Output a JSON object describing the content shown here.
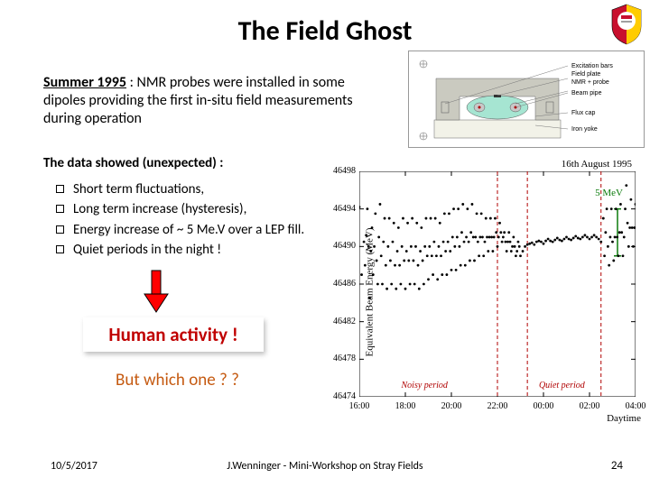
{
  "title": "The Field Ghost",
  "intro_lead": "Summer 1995",
  "intro_rest": " : NMR probes were installed in some dipoles providing the first in-situ field measurements during operation",
  "subhead": "The data showed (unexpected) :",
  "bullets": [
    "Short term fluctuations,",
    "Long term increase (hysteresis),",
    "Energy increase of ~ 5 Me.V over a LEP fill.",
    "Quiet periods in the night !"
  ],
  "human_activity": "Human activity !",
  "human_activity_color": "#c00000",
  "which_one": "But which one ? ?",
  "which_one_color": "#c55a11",
  "footer_date": "10/5/2017",
  "footer_center": "J.Wenninger - Mini-Workshop on Stray Fields",
  "footer_page": "24",
  "arrow_colors": {
    "fill": "#ff0000",
    "stroke": "#000000"
  },
  "logo_colors": {
    "outer": "#c8102e",
    "inner": "#ffcc00"
  },
  "diagram": {
    "labels": [
      "Excitation bars",
      "Field plate",
      "NMR + probe",
      "Flux cap",
      "Iron yoke"
    ],
    "labels_fontsize": 7,
    "border_color": "#999999",
    "pipe_color": "#a6e5d2",
    "yoke_color": "#cacac0",
    "base_color": "#f2f2e8",
    "bh_color": "#c8c8c8"
  },
  "chart": {
    "type": "scatter-line",
    "ylabel": "Equivalent Beam Energy (MeV)",
    "xlabel": "Daytime",
    "chart_title": "16th August 1995",
    "mev_annotation": "5 MeV",
    "mev_color": "#0a7a0a",
    "dash_color": "#b00000",
    "noisy_label": "Noisy period",
    "quiet_label": "Quiet period",
    "region_color": "#b00000",
    "ylim": [
      46474,
      46498
    ],
    "ytick_step": 2,
    "yticks": [
      46474,
      46478,
      46482,
      46486,
      46490,
      46494,
      46498
    ],
    "xticks": [
      "16:00",
      "18:00",
      "20:00",
      "22:00",
      "00:00",
      "02:00",
      "04:00"
    ],
    "xrange_hours": [
      16,
      28
    ],
    "noisy_period": [
      16,
      22
    ],
    "quiet_period": [
      23.3,
      26.5
    ],
    "background_color": "#ffffff",
    "axis_color": "#000000",
    "point_color": "#000000",
    "point_size": 2,
    "series": [
      [
        16.0,
        46494.2
      ],
      [
        16.1,
        46487.0
      ],
      [
        16.2,
        46490.5
      ],
      [
        16.25,
        46488.0
      ],
      [
        16.3,
        46491.2
      ],
      [
        16.35,
        46494.0
      ],
      [
        16.4,
        46490.0
      ],
      [
        16.45,
        46484.5
      ],
      [
        16.5,
        46489.5
      ],
      [
        16.55,
        46492.0
      ],
      [
        16.6,
        46487.0
      ],
      [
        16.65,
        46490.0
      ],
      [
        16.7,
        46493.5
      ],
      [
        16.75,
        46488.5
      ],
      [
        16.8,
        46486.0
      ],
      [
        16.85,
        46491.0
      ],
      [
        16.9,
        46494.5
      ],
      [
        16.95,
        46489.0
      ],
      [
        17.0,
        46486.0
      ],
      [
        17.05,
        46490.5
      ],
      [
        17.1,
        46493.0
      ],
      [
        17.15,
        46488.0
      ],
      [
        17.2,
        46485.5
      ],
      [
        17.25,
        46490.0
      ],
      [
        17.3,
        46493.0
      ],
      [
        17.35,
        46488.5
      ],
      [
        17.4,
        46486.0
      ],
      [
        17.45,
        46490.5
      ],
      [
        17.5,
        46492.5
      ],
      [
        17.55,
        46488.0
      ],
      [
        17.6,
        46485.5
      ],
      [
        17.65,
        46489.5
      ],
      [
        17.7,
        46492.0
      ],
      [
        17.75,
        46488.0
      ],
      [
        17.8,
        46486.0
      ],
      [
        17.85,
        46490.0
      ],
      [
        17.9,
        46493.0
      ],
      [
        17.95,
        46488.5
      ],
      [
        18.0,
        46485.5
      ],
      [
        18.05,
        46489.5
      ],
      [
        18.1,
        46492.5
      ],
      [
        18.15,
        46488.5
      ],
      [
        18.2,
        46486.0
      ],
      [
        18.25,
        46490.0
      ],
      [
        18.3,
        46493.0
      ],
      [
        18.35,
        46488.5
      ],
      [
        18.4,
        46486.0
      ],
      [
        18.45,
        46490.0
      ],
      [
        18.5,
        46492.5
      ],
      [
        18.55,
        46488.0
      ],
      [
        18.6,
        46485.5
      ],
      [
        18.65,
        46489.5
      ],
      [
        18.7,
        46492.0
      ],
      [
        18.75,
        46488.5
      ],
      [
        18.8,
        46486.0
      ],
      [
        18.85,
        46490.0
      ],
      [
        18.9,
        46493.0
      ],
      [
        18.95,
        46489.0
      ],
      [
        19.0,
        46486.5
      ],
      [
        19.05,
        46490.0
      ],
      [
        19.1,
        46493.0
      ],
      [
        19.15,
        46489.0
      ],
      [
        19.2,
        46487.0
      ],
      [
        19.25,
        46490.5
      ],
      [
        19.3,
        46493.0
      ],
      [
        19.35,
        46489.0
      ],
      [
        19.4,
        46486.5
      ],
      [
        19.45,
        46490.0
      ],
      [
        19.5,
        46492.5
      ],
      [
        19.55,
        46489.0
      ],
      [
        19.6,
        46487.0
      ],
      [
        19.65,
        46490.5
      ],
      [
        19.7,
        46493.5
      ],
      [
        19.75,
        46489.5
      ],
      [
        19.8,
        46487.0
      ],
      [
        19.85,
        46490.5
      ],
      [
        19.9,
        46493.5
      ],
      [
        19.95,
        46489.5
      ],
      [
        20.0,
        46487.5
      ],
      [
        20.05,
        46491.0
      ],
      [
        20.1,
        46494.0
      ],
      [
        20.15,
        46490.0
      ],
      [
        20.2,
        46487.5
      ],
      [
        20.25,
        46491.0
      ],
      [
        20.3,
        46494.0
      ],
      [
        20.35,
        46490.0
      ],
      [
        20.4,
        46488.0
      ],
      [
        20.45,
        46491.5
      ],
      [
        20.5,
        46494.5
      ],
      [
        20.55,
        46490.5
      ],
      [
        20.6,
        46488.0
      ],
      [
        20.65,
        46491.0
      ],
      [
        20.7,
        46494.0
      ],
      [
        20.75,
        46490.5
      ],
      [
        20.8,
        46488.5
      ],
      [
        20.85,
        46491.5
      ],
      [
        20.9,
        46494.5
      ],
      [
        20.95,
        46491.0
      ],
      [
        21.0,
        46488.5
      ],
      [
        21.05,
        46491.0
      ],
      [
        21.1,
        46493.5
      ],
      [
        21.15,
        46490.5
      ],
      [
        21.2,
        46489.0
      ],
      [
        21.25,
        46491.0
      ],
      [
        21.3,
        46493.5
      ],
      [
        21.35,
        46491.0
      ],
      [
        21.4,
        46489.0
      ],
      [
        21.45,
        46490.5
      ],
      [
        21.5,
        46493.0
      ],
      [
        21.55,
        46491.0
      ],
      [
        21.6,
        46489.5
      ],
      [
        21.65,
        46491.0
      ],
      [
        21.7,
        46493.0
      ],
      [
        21.75,
        46491.0
      ],
      [
        21.8,
        46489.5
      ],
      [
        21.85,
        46491.0
      ],
      [
        21.9,
        46493.0
      ],
      [
        21.95,
        46491.5
      ],
      [
        22.0,
        46490.0
      ],
      [
        22.05,
        46491.0
      ],
      [
        22.1,
        46492.5
      ],
      [
        22.15,
        46491.5
      ],
      [
        22.2,
        46490.5
      ],
      [
        22.25,
        46491.0
      ],
      [
        22.3,
        46491.5
      ],
      [
        22.35,
        46490.5
      ],
      [
        22.4,
        46489.5
      ],
      [
        22.45,
        46490.5
      ],
      [
        22.5,
        46491.5
      ],
      [
        22.55,
        46490.5
      ],
      [
        22.6,
        46489.5
      ],
      [
        22.65,
        46490.0
      ],
      [
        22.7,
        46491.0
      ],
      [
        22.75,
        46490.0
      ],
      [
        22.8,
        46489.0
      ],
      [
        22.85,
        46489.5
      ],
      [
        22.9,
        46490.5
      ],
      [
        22.95,
        46490.0
      ],
      [
        23.0,
        46489.0
      ],
      [
        23.1,
        46489.5
      ],
      [
        23.2,
        46490.0
      ],
      [
        23.3,
        46490.2
      ],
      [
        23.4,
        46490.3
      ],
      [
        23.5,
        46490.4
      ],
      [
        23.6,
        46490.2
      ],
      [
        23.7,
        46490.5
      ],
      [
        23.8,
        46490.6
      ],
      [
        23.9,
        46490.5
      ],
      [
        24.0,
        46490.3
      ],
      [
        24.1,
        46490.6
      ],
      [
        24.2,
        46490.8
      ],
      [
        24.3,
        46490.6
      ],
      [
        24.4,
        46490.5
      ],
      [
        24.5,
        46490.7
      ],
      [
        24.6,
        46490.9
      ],
      [
        24.7,
        46490.7
      ],
      [
        24.8,
        46490.6
      ],
      [
        24.9,
        46490.8
      ],
      [
        25.0,
        46491.0
      ],
      [
        25.1,
        46490.8
      ],
      [
        25.2,
        46490.7
      ],
      [
        25.3,
        46490.9
      ],
      [
        25.4,
        46491.1
      ],
      [
        25.5,
        46490.9
      ],
      [
        25.6,
        46490.8
      ],
      [
        25.7,
        46491.0
      ],
      [
        25.8,
        46491.2
      ],
      [
        25.9,
        46491.0
      ],
      [
        26.0,
        46490.8
      ],
      [
        26.1,
        46491.0
      ],
      [
        26.2,
        46491.2
      ],
      [
        26.3,
        46491.0
      ],
      [
        26.4,
        46490.8
      ],
      [
        26.5,
        46490.5
      ],
      [
        26.6,
        46493.0
      ],
      [
        26.65,
        46489.0
      ],
      [
        26.7,
        46491.5
      ],
      [
        26.75,
        46494.0
      ],
      [
        26.8,
        46490.0
      ],
      [
        26.85,
        46488.0
      ],
      [
        26.9,
        46491.0
      ],
      [
        26.95,
        46494.0
      ],
      [
        27.0,
        46490.5
      ],
      [
        27.05,
        46488.5
      ],
      [
        27.1,
        46491.0
      ],
      [
        27.15,
        46494.0
      ],
      [
        27.2,
        46491.0
      ],
      [
        27.25,
        46489.0
      ],
      [
        27.3,
        46491.5
      ],
      [
        27.35,
        46494.5
      ],
      [
        27.4,
        46491.5
      ],
      [
        27.45,
        46489.0
      ],
      [
        27.5,
        46491.0
      ],
      [
        27.55,
        46494.0
      ],
      [
        27.6,
        46496.5
      ],
      [
        27.65,
        46492.5
      ],
      [
        27.7,
        46490.0
      ],
      [
        27.75,
        46492.0
      ],
      [
        27.8,
        46495.0
      ],
      [
        27.85,
        46492.0
      ],
      [
        27.9,
        46490.0
      ],
      [
        27.95,
        46492.0
      ],
      [
        28.0,
        46494.5
      ]
    ]
  }
}
